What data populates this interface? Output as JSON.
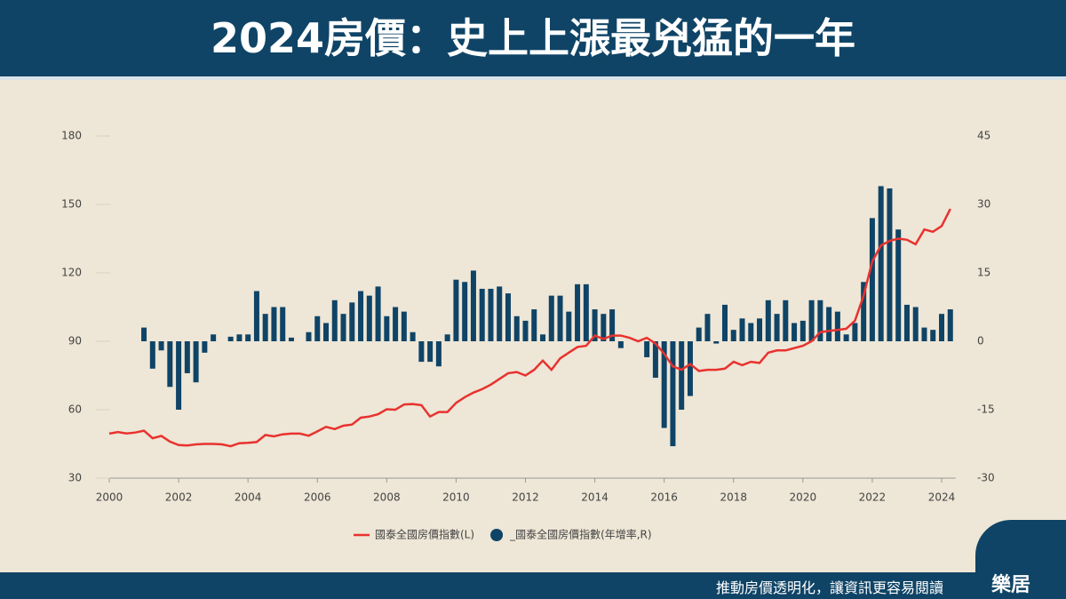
{
  "header": {
    "title": "2024房價：史上上漲最兇猛的一年"
  },
  "footer": {
    "text": "推動房價透明化，讓資訊更容易閱讀",
    "logo": "樂居"
  },
  "chart_data": {
    "type": "bar-line",
    "xlim": [
      1999.7,
      2024.4
    ],
    "xticks": [
      2000,
      2002,
      2004,
      2006,
      2008,
      2010,
      2012,
      2014,
      2016,
      2018,
      2020,
      2022,
      2024
    ],
    "ylim": [
      30,
      180
    ],
    "yticks": [
      30,
      60,
      90,
      120,
      150,
      180
    ],
    "y2lim": [
      -30,
      45
    ],
    "y2ticks": [
      -30,
      -15,
      0,
      15,
      30,
      45
    ],
    "series": [
      {
        "name": "國泰全國房價指數(L)",
        "type": "line",
        "color": "#e8322e",
        "axis": "y",
        "x": [
          2000,
          2000.25,
          2000.5,
          2000.75,
          2001,
          2001.25,
          2001.5,
          2001.75,
          2002,
          2002.25,
          2002.5,
          2002.75,
          2003,
          2003.25,
          2003.5,
          2003.75,
          2004,
          2004.25,
          2004.5,
          2004.75,
          2005,
          2005.25,
          2005.5,
          2005.75,
          2006,
          2006.25,
          2006.5,
          2006.75,
          2007,
          2007.25,
          2007.5,
          2007.75,
          2008,
          2008.25,
          2008.5,
          2008.75,
          2009,
          2009.25,
          2009.5,
          2009.75,
          2010,
          2010.25,
          2010.5,
          2010.75,
          2011,
          2011.25,
          2011.5,
          2011.75,
          2012,
          2012.25,
          2012.5,
          2012.75,
          2013,
          2013.25,
          2013.5,
          2013.75,
          2014,
          2014.25,
          2014.5,
          2014.75,
          2015,
          2015.25,
          2015.5,
          2015.75,
          2016,
          2016.25,
          2016.5,
          2016.75,
          2017,
          2017.25,
          2017.5,
          2017.75,
          2018,
          2018.25,
          2018.5,
          2018.75,
          2019,
          2019.25,
          2019.5,
          2019.75,
          2020,
          2020.25,
          2020.5,
          2020.75,
          2021,
          2021.25,
          2021.5,
          2021.75,
          2022,
          2022.25,
          2022.5,
          2022.75,
          2023,
          2023.25,
          2023.5,
          2023.75,
          2024,
          2024.25
        ],
        "values": [
          49.5,
          50.2,
          49.6,
          50,
          50.8,
          47.5,
          48.5,
          46,
          44.5,
          44.3,
          44.8,
          45,
          45,
          44.8,
          44,
          45.3,
          45.5,
          45.8,
          48.9,
          48.3,
          49.2,
          49.5,
          49.5,
          48.6,
          50.5,
          52.5,
          51.5,
          53,
          53.5,
          56.5,
          57,
          58,
          60.2,
          60,
          62.3,
          62.5,
          62,
          57,
          59,
          59,
          63,
          65.5,
          67.5,
          69,
          71,
          73.5,
          76,
          76.5,
          75,
          77.5,
          81.5,
          77.5,
          82.5,
          85,
          87.5,
          88,
          92.5,
          91,
          92.5,
          92.5,
          91.5,
          90,
          91.5,
          89,
          84.5,
          79,
          77.5,
          80,
          77,
          77.5,
          77.5,
          78,
          81,
          79.5,
          81,
          80.5,
          85,
          86,
          86,
          87,
          88,
          90,
          94,
          94.5,
          95,
          95.5,
          99,
          110,
          125,
          132,
          134,
          135,
          134.5,
          132.5,
          139,
          138,
          140.5,
          148
        ]
      },
      {
        "name": "_國泰全國房價指數(年增率,R)",
        "type": "bar",
        "color": "#0f4466",
        "axis": "y2",
        "x": [
          2001,
          2001.25,
          2001.5,
          2001.75,
          2002,
          2002.25,
          2002.5,
          2002.75,
          2003,
          2003.25,
          2003.5,
          2003.75,
          2004,
          2004.25,
          2004.5,
          2004.75,
          2005,
          2005.25,
          2005.5,
          2005.75,
          2006,
          2006.25,
          2006.5,
          2006.75,
          2007,
          2007.25,
          2007.5,
          2007.75,
          2008,
          2008.25,
          2008.5,
          2008.75,
          2009,
          2009.25,
          2009.5,
          2009.75,
          2010,
          2010.25,
          2010.5,
          2010.75,
          2011,
          2011.25,
          2011.5,
          2011.75,
          2012,
          2012.25,
          2012.5,
          2012.75,
          2013,
          2013.25,
          2013.5,
          2013.75,
          2014,
          2014.25,
          2014.5,
          2014.75,
          2015,
          2015.25,
          2015.5,
          2015.75,
          2016,
          2016.25,
          2016.5,
          2016.75,
          2017,
          2017.25,
          2017.5,
          2017.75,
          2018,
          2018.25,
          2018.5,
          2018.75,
          2019,
          2019.25,
          2019.5,
          2019.75,
          2020,
          2020.25,
          2020.5,
          2020.75,
          2021,
          2021.25,
          2021.5,
          2021.75,
          2022,
          2022.25,
          2022.5,
          2022.75,
          2023,
          2023.25,
          2023.5,
          2023.75,
          2024,
          2024.25
        ],
        "values": [
          3,
          -6,
          -2,
          -10,
          -15,
          -7,
          -9,
          -2.5,
          1.5,
          0,
          1,
          1.5,
          1.5,
          11,
          6,
          7.5,
          7.5,
          0.8,
          0,
          2,
          5.5,
          4,
          9,
          6,
          8.5,
          11,
          10,
          12,
          5.5,
          7.5,
          6.5,
          2,
          -4.5,
          -4.5,
          -5.5,
          1.5,
          13.5,
          13,
          15.5,
          11.5,
          11.5,
          12,
          10.5,
          5.5,
          4.5,
          7,
          1.5,
          10,
          10,
          6.5,
          12.5,
          12.5,
          7,
          6,
          7,
          -1.5,
          0,
          0,
          -3.5,
          -8,
          -19,
          -23,
          -15,
          -12,
          3,
          6,
          -0.5,
          8,
          2.5,
          5,
          4,
          5,
          9,
          6,
          9,
          4,
          4.5,
          9,
          9,
          7.5,
          6.5,
          1.5,
          4,
          13,
          27,
          34,
          33.5,
          24.5,
          8,
          7.5,
          3,
          2.5,
          6,
          7
        ]
      }
    ]
  }
}
